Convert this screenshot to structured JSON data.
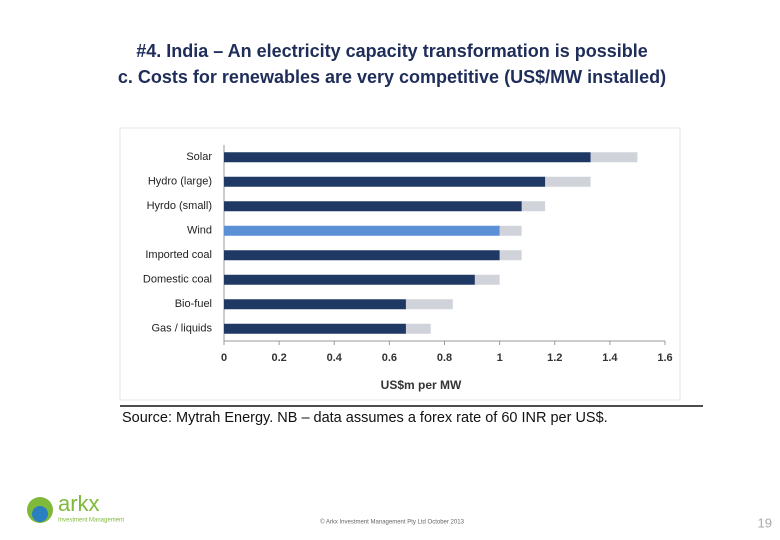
{
  "chart_data": {
    "type": "range-bar",
    "title": "#4. India – An electricity capacity transformation is possible",
    "subtitle": "c. Costs for renewables are very competitive (US$/MW installed)",
    "categories": [
      "Solar",
      "Hydro (large)",
      "Hyrdo (small)",
      "Wind",
      "Imported coal",
      "Domestic coal",
      "Bio-fuel",
      "Gas / liquids"
    ],
    "low": [
      1.33,
      1.165,
      1.08,
      1.0,
      1.0,
      0.91,
      0.66,
      0.66
    ],
    "high": [
      1.5,
      1.33,
      1.165,
      1.08,
      1.08,
      1.0,
      0.83,
      0.75
    ],
    "bar_colors": [
      "#1f3864",
      "#1f3864",
      "#1f3864",
      "#5b8fd6",
      "#1f3864",
      "#1f3864",
      "#1f3864",
      "#1f3864"
    ],
    "range_color": "#d0d3da",
    "xlim": [
      0,
      1.6
    ],
    "xticks": [
      0,
      0.2,
      0.4,
      0.6,
      0.8,
      1,
      1.2,
      1.4,
      1.6
    ],
    "xlabel": "US$m per MW",
    "source": "Source: Mytrah Energy. NB – data assumes a forex rate of 60 INR per US$."
  },
  "footer": {
    "logo": "arkx",
    "logo_tagline": "Investment Management",
    "copyright": "© Arkx Investment Management Pty Ltd October 2013",
    "page_number": "19"
  }
}
